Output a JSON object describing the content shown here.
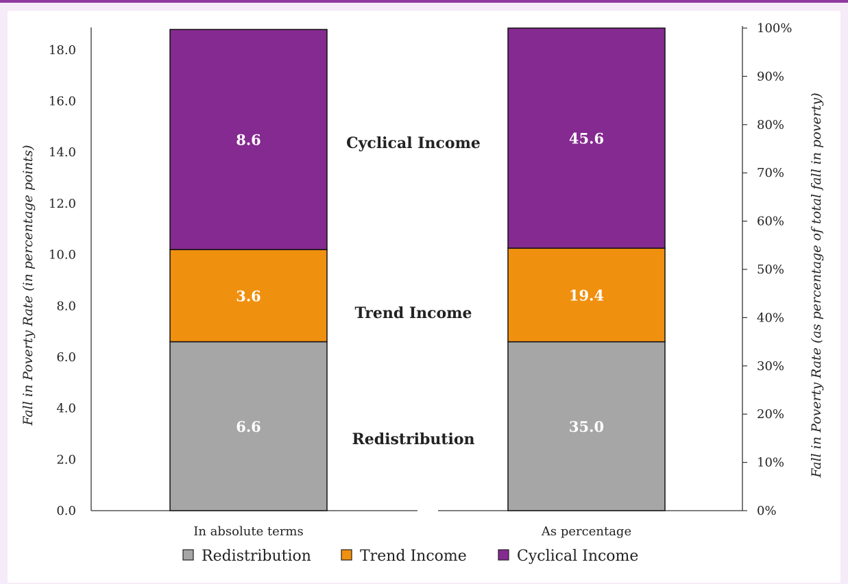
{
  "chart_data": {
    "type": "bar",
    "stacked": true,
    "colors": {
      "Redistribution": "#a6a6a6",
      "Trend Income": "#f0900f",
      "Cyclical Income": "#852a90"
    },
    "left_axis": {
      "label": "Fall in Poverty Rate (in percentage points)",
      "ylim": [
        0,
        18.8
      ],
      "ticks": [
        "0.0",
        "2.0",
        "4.0",
        "6.0",
        "8.0",
        "10.0",
        "12.0",
        "14.0",
        "16.0",
        "18.0"
      ]
    },
    "right_axis": {
      "label": "Fall in Poverty Rate (as percentage of  total fall in poverty)",
      "ylim": [
        0,
        100
      ],
      "ticks": [
        "0%",
        "10%",
        "20%",
        "30%",
        "40%",
        "50%",
        "60%",
        "70%",
        "80%",
        "90%",
        "100%"
      ]
    },
    "bars": [
      {
        "category": "In absolute terms",
        "axis": "left",
        "segments": [
          {
            "series": "Redistribution",
            "value": 6.6,
            "label": "6.6"
          },
          {
            "series": "Trend Income",
            "value": 3.6,
            "label": "3.6"
          },
          {
            "series": "Cyclical Income",
            "value": 8.6,
            "label": "8.6"
          }
        ]
      },
      {
        "category": "As percentage",
        "axis": "right",
        "segments": [
          {
            "series": "Redistribution",
            "value": 35.0,
            "label": "35.0"
          },
          {
            "series": "Trend Income",
            "value": 19.4,
            "label": "19.4"
          },
          {
            "series": "Cyclical Income",
            "value": 45.6,
            "label": "45.6"
          }
        ]
      }
    ],
    "component_labels": [
      "Cyclical Income",
      "Trend Income",
      "Redistribution"
    ],
    "legend": {
      "position": "bottom",
      "entries": [
        "Redistribution",
        "Trend Income",
        "Cyclical Income"
      ]
    },
    "grid": false
  }
}
